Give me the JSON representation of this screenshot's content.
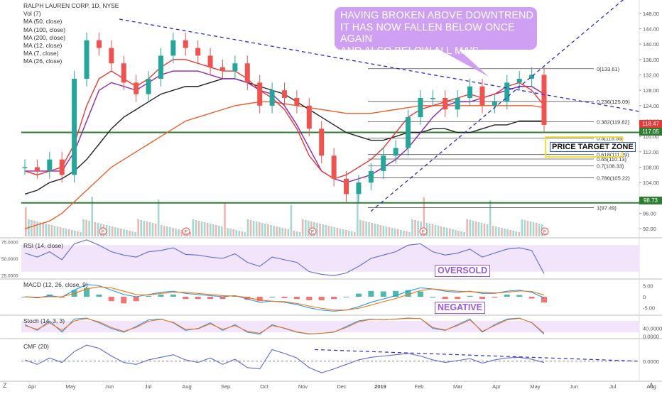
{
  "legend": {
    "title": "RALPH LAUREN CORP, 1D, NYSE",
    "items": [
      "Vol (7)",
      "MA (50, close)",
      "MA (100, close)",
      "MA (200, close)",
      "MA (12, close)",
      "MA (7, close)",
      "MA (26, close)"
    ]
  },
  "annotation": {
    "callout": "HAVING BROKEN ABOVE DOWNTREND IT HAS NOW FALLEN BELOW ONCE AGAIN AND ALSO BELOW ALL MA'S",
    "callout_lines": [
      "HAVING BROKEN ABOVE DOWNTREND",
      "IT HAS NOW FALLEN BELOW ONCE AGAIN",
      "AND ALSO BELOW ALL MA'S"
    ],
    "price_target": "PRICE TARGET ZONE",
    "oversold": "OVERSOLD",
    "negative": "NEGATIVE"
  },
  "panes": {
    "rsi": "RSI (14, close)",
    "macd": "MACD (12, 26, close, 9)",
    "stoch": "Stoch (14, 3, 3)",
    "cmf": "CMF (20)"
  },
  "price_badges": [
    {
      "value": "118.47",
      "color": "#e53935"
    },
    {
      "value": "117.05",
      "color": "#2e7d32"
    },
    {
      "value": "98.73",
      "color": "#2e7d32"
    }
  ],
  "fib_levels": [
    {
      "label": "0(133.61)",
      "value": 133.61
    },
    {
      "label": "0.236(125.09)",
      "value": 125.09
    },
    {
      "label": "0.382(119.82)",
      "value": 119.82
    },
    {
      "label": "0.5(115.55)",
      "value": 115.55
    },
    {
      "label": "0.618(111.29)",
      "value": 111.29
    },
    {
      "label": "0.65(110.13)",
      "value": 110.13
    },
    {
      "label": "0.7(108.33)",
      "value": 108.33
    },
    {
      "label": "0.786(105.22)",
      "value": 105.22
    },
    {
      "label": "1(97.49)",
      "value": 97.49
    }
  ],
  "chart_data": {
    "type": "line",
    "title": "RALPH LAUREN CORP, 1D, NYSE",
    "xlabel": "",
    "ylabel": "",
    "ylim": [
      90,
      150
    ],
    "yticks": [
      92,
      96,
      100,
      104,
      108,
      112,
      116,
      120,
      124,
      128,
      132,
      136,
      140,
      144,
      148
    ],
    "x_ticks": [
      "Apr",
      "May",
      "Jun",
      "Jul",
      "Aug",
      "Sep",
      "Oct",
      "Nov",
      "Dec",
      "2019",
      "Feb",
      "Mar",
      "Apr",
      "May",
      "Jun",
      "Jul",
      "Aug"
    ],
    "horizontal_levels": [
      117.05,
      98.73
    ],
    "series": [
      {
        "name": "close",
        "color": "#26a69a",
        "values": [
          108,
          107,
          110,
          106,
          131,
          141,
          139,
          135,
          130,
          127,
          131,
          137,
          141,
          139,
          137,
          134,
          133,
          135,
          130,
          124,
          128,
          126,
          124,
          118,
          111,
          105,
          101,
          104,
          107,
          111,
          113,
          121,
          126,
          126,
          123,
          126,
          129,
          124,
          125,
          130,
          131,
          132,
          119
        ]
      },
      {
        "name": "MA (200, close)",
        "color": "#e8602c",
        "values": [
          92,
          93,
          94,
          96,
          99,
          102,
          105,
          108,
          110,
          112,
          114,
          116,
          118,
          120,
          121,
          122,
          123,
          124,
          124.5,
          125,
          125,
          124.5,
          124,
          123.5,
          123,
          122.5,
          122,
          122,
          122,
          122.5,
          123,
          123.5,
          124,
          124,
          124,
          124,
          124,
          124,
          124,
          124,
          124,
          124,
          123.5
        ]
      },
      {
        "name": "MA (100, close)",
        "color": "#222222",
        "values": [
          101,
          102,
          104,
          105,
          107,
          110,
          114,
          118,
          121,
          123,
          125,
          127,
          128,
          129,
          129,
          130,
          131,
          131,
          130,
          129,
          128,
          127,
          125,
          123,
          121,
          119,
          117,
          116,
          115,
          115,
          116,
          117,
          117,
          118,
          118,
          117,
          117,
          118,
          119,
          119,
          120,
          120,
          120
        ]
      },
      {
        "name": "MA (50, close)",
        "color": "#8e24aa",
        "values": [
          107,
          107,
          107,
          107,
          112,
          120,
          128,
          130,
          129,
          128,
          130,
          132,
          133,
          133,
          133,
          132,
          131,
          131,
          130,
          128,
          127,
          124,
          119,
          113,
          107,
          105,
          104,
          105,
          106,
          108,
          110,
          113,
          117,
          121,
          124,
          125,
          125,
          126,
          127,
          128,
          129,
          129,
          127
        ]
      },
      {
        "name": "MA (26, close)",
        "color": "#e53935",
        "values": [
          107,
          106,
          107,
          108,
          114,
          124,
          131,
          133,
          131,
          129,
          131,
          134,
          136,
          136,
          135,
          134,
          133,
          133,
          131,
          128,
          126,
          123,
          118,
          111,
          107,
          105,
          106,
          108,
          110,
          113,
          117,
          121,
          123,
          124,
          125,
          126,
          127,
          126,
          127,
          129,
          130,
          128,
          124
        ]
      }
    ],
    "indicators": {
      "rsi": {
        "ylim": [
          20,
          80
        ],
        "yticks": [
          "75.0000",
          "50.0000",
          "25.0000"
        ],
        "values": [
          58,
          52,
          60,
          48,
          72,
          78,
          70,
          60,
          55,
          52,
          60,
          62,
          66,
          56,
          55,
          52,
          50,
          57,
          44,
          38,
          52,
          48,
          44,
          30,
          26,
          24,
          28,
          38,
          50,
          55,
          60,
          70,
          72,
          60,
          55,
          58,
          64,
          52,
          58,
          64,
          66,
          62,
          27
        ]
      },
      "macd": {
        "ylim": [
          -8,
          8
        ],
        "yticks": [
          "5.00",
          "0",
          "-5.00"
        ],
        "macd": [
          0,
          -0.5,
          0.5,
          -0.2,
          3,
          5.5,
          5,
          3,
          1,
          0,
          1,
          2,
          2.5,
          1.5,
          1,
          0.5,
          0,
          0.5,
          -1,
          -2.5,
          -2,
          -2.5,
          -3.5,
          -5,
          -6,
          -6.5,
          -6,
          -4.5,
          -2.5,
          -1,
          0.5,
          2.5,
          4,
          3.5,
          2.5,
          2,
          2.5,
          1.5,
          1.5,
          2.5,
          3,
          2,
          -0.5
        ],
        "signal": [
          0,
          -0.2,
          0,
          0,
          1.5,
          3.5,
          4.5,
          4,
          2.5,
          1,
          0.8,
          1.5,
          2,
          2,
          1.5,
          1,
          0.5,
          0.3,
          -0.3,
          -1.5,
          -2,
          -2.2,
          -3,
          -4.2,
          -5.2,
          -6,
          -6,
          -5.2,
          -3.8,
          -2.2,
          -0.8,
          1,
          2.8,
          3.5,
          3,
          2.5,
          2.3,
          2,
          1.7,
          2,
          2.6,
          2.4,
          0.8
        ]
      },
      "stoch": {
        "ylim": [
          -10,
          110
        ],
        "yticks": [
          "40.0000",
          "0.0000"
        ],
        "k": [
          60,
          30,
          80,
          20,
          90,
          95,
          70,
          40,
          20,
          50,
          85,
          90,
          70,
          30,
          40,
          70,
          30,
          60,
          20,
          10,
          60,
          40,
          20,
          10,
          15,
          20,
          50,
          80,
          90,
          85,
          90,
          95,
          92,
          40,
          30,
          60,
          90,
          20,
          60,
          90,
          95,
          70,
          10
        ],
        "d": [
          55,
          35,
          70,
          30,
          80,
          92,
          75,
          45,
          25,
          45,
          78,
          88,
          72,
          35,
          38,
          65,
          35,
          55,
          25,
          15,
          55,
          42,
          22,
          12,
          14,
          22,
          45,
          75,
          88,
          86,
          89,
          93,
          92,
          45,
          32,
          55,
          85,
          25,
          55,
          85,
          93,
          72,
          15
        ]
      },
      "cmf": {
        "ylim": [
          -0.3,
          0.35
        ],
        "yticks": [
          "0.0000"
        ],
        "values": [
          0.02,
          -0.05,
          0.05,
          -0.02,
          0.15,
          0.25,
          0.2,
          0.08,
          -0.02,
          -0.05,
          0.02,
          0.06,
          0.1,
          0.02,
          -0.02,
          0.05,
          -0.05,
          0.03,
          -0.1,
          -0.12,
          0.18,
          0.12,
          0.05,
          -0.1,
          -0.18,
          -0.12,
          -0.05,
          0.02,
          0.06,
          0.08,
          0.1,
          0.12,
          0.08,
          0.02,
          -0.02,
          0.01,
          0.04,
          -0.03,
          0.02,
          0.05,
          0.06,
          0.03,
          -0.02
        ]
      }
    }
  }
}
